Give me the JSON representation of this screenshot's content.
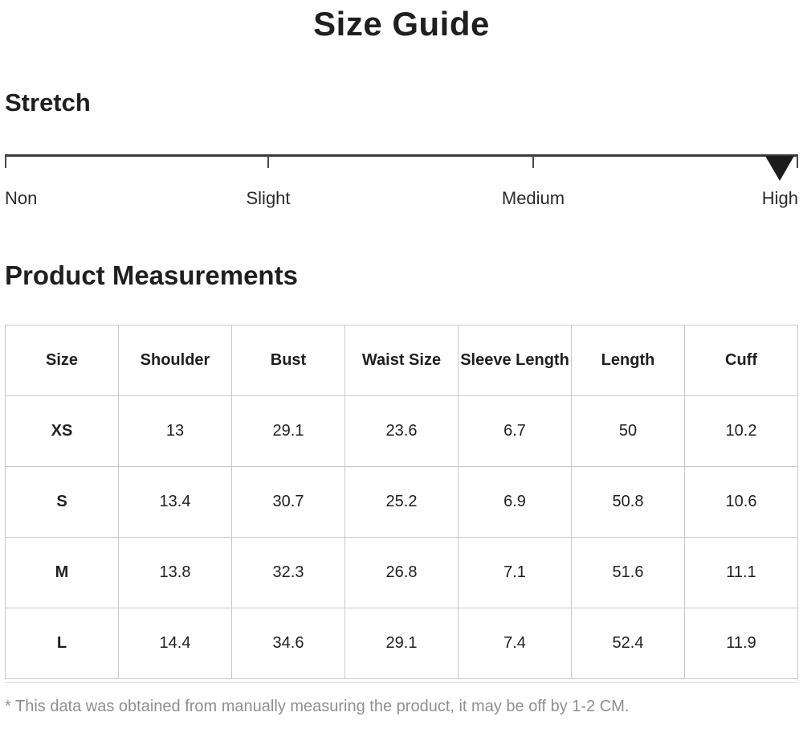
{
  "page": {
    "title": "Size Guide",
    "footnote": "* This data was obtained from manually measuring the product, it may be off by 1-2 CM."
  },
  "stretch": {
    "heading": "Stretch",
    "levels": [
      {
        "label": "Non",
        "position_pct": 0
      },
      {
        "label": "Slight",
        "position_pct": 33.2
      },
      {
        "label": "Medium",
        "position_pct": 66.6
      },
      {
        "label": "High",
        "position_pct": 100
      }
    ],
    "selected": "High",
    "marker_icon": "triangle-down",
    "marker_position_pct": 97.7
  },
  "measurements": {
    "heading": "Product Measurements",
    "columns": [
      "Size",
      "Shoulder",
      "Bust",
      "Waist Size",
      "Sleeve Length",
      "Length",
      "Cuff"
    ],
    "rows": [
      {
        "size": "XS",
        "values": [
          "13",
          "29.1",
          "23.6",
          "6.7",
          "50",
          "10.2"
        ]
      },
      {
        "size": "S",
        "values": [
          "13.4",
          "30.7",
          "25.2",
          "6.9",
          "50.8",
          "10.6"
        ]
      },
      {
        "size": "M",
        "values": [
          "13.8",
          "32.3",
          "26.8",
          "7.1",
          "51.6",
          "11.1"
        ]
      },
      {
        "size": "L",
        "values": [
          "14.4",
          "34.6",
          "29.1",
          "7.4",
          "52.4",
          "11.9"
        ]
      }
    ]
  },
  "colors": {
    "text": "#1f1f1f",
    "table_border": "#c9c9c9",
    "footnote_text": "#8f8f8f",
    "scale_line": "#3a3a3a",
    "marker": "#1c1c1c"
  }
}
